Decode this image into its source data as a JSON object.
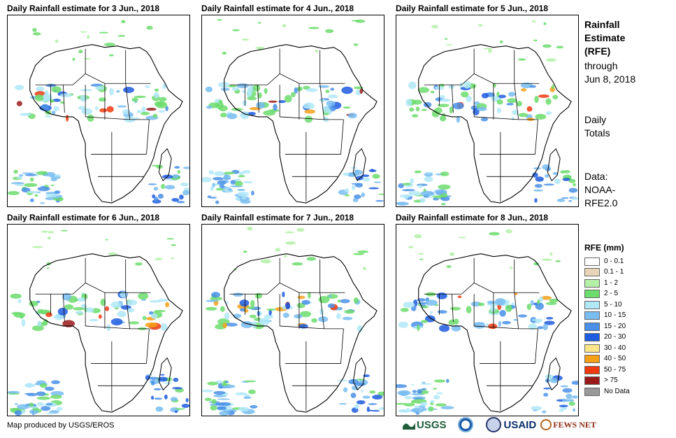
{
  "panels": [
    {
      "title": "Daily Rainfall estimate for 3 Jun., 2018",
      "date": "3 Jun."
    },
    {
      "title": "Daily Rainfall estimate for 4 Jun., 2018",
      "date": "4 Jun."
    },
    {
      "title": "Daily Rainfall estimate for 5 Jun., 2018",
      "date": "5 Jun."
    },
    {
      "title": "Daily Rainfall estimate for 6 Jun., 2018",
      "date": "6 Jun."
    },
    {
      "title": "Daily Rainfall estimate for 7 Jun., 2018",
      "date": "7 Jun."
    },
    {
      "title": "Daily Rainfall estimate for 8 Jun., 2018",
      "date": "8 Jun."
    }
  ],
  "side": {
    "title_lines": [
      "Rainfall",
      "Estimate",
      "(RFE)"
    ],
    "through": "through",
    "period": "Jun 8, 2018",
    "daily_lines": [
      "Daily",
      "Totals"
    ],
    "data_lines": [
      "Data:",
      "NOAA-",
      "RFE2.0"
    ]
  },
  "legend": {
    "title": "RFE (mm)",
    "classes": [
      {
        "label": "0 - 0.1",
        "color": "#ffffff"
      },
      {
        "label": "0.1 - 1",
        "color": "#e8d5b7"
      },
      {
        "label": "1 - 2",
        "color": "#b4f0a8"
      },
      {
        "label": "2 - 5",
        "color": "#6cdc6c"
      },
      {
        "label": "5 - 10",
        "color": "#b0e8f8"
      },
      {
        "label": "10 - 15",
        "color": "#78bcf0"
      },
      {
        "label": "15 - 20",
        "color": "#4a90e8"
      },
      {
        "label": "20 - 30",
        "color": "#1e5ce0"
      },
      {
        "label": "30 - 40",
        "color": "#fbe58a"
      },
      {
        "label": "40 - 50",
        "color": "#f6a018"
      },
      {
        "label": "50 - 75",
        "color": "#ee3a0e"
      },
      {
        "label": "> 75",
        "color": "#9a1a1a"
      },
      {
        "label": "No Data",
        "color": "#999999"
      }
    ]
  },
  "footer": {
    "credit": "Map produced by USGS/EROS",
    "logos": [
      {
        "name": "usgs-logo",
        "text": "USGS"
      },
      {
        "name": "noaa-logo"
      },
      {
        "name": "usaid-seal"
      },
      {
        "name": "usaid-logo",
        "text": "USAID"
      },
      {
        "name": "fews-net-logo",
        "text": "FEWS NET"
      }
    ]
  }
}
